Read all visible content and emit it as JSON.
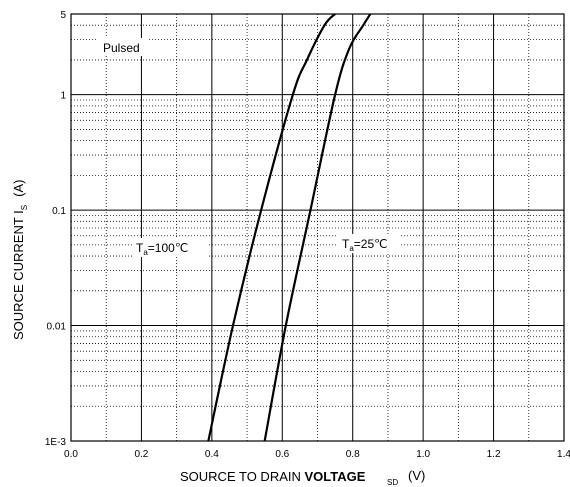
{
  "chart_data": {
    "type": "line",
    "x_axis": {
      "title_main": "SOURCE TO DRAIN ",
      "title_bold": "VOLTAGE",
      "title_sub": "SD",
      "title_unit": "(V)",
      "range": [
        0.0,
        1.4
      ],
      "ticks": [
        0.0,
        0.2,
        0.4,
        0.6,
        0.8,
        1.0,
        1.2,
        1.4
      ],
      "tick_labels": [
        "0.0",
        "0.2",
        "0.4",
        "0.6",
        "0.8",
        "1.0",
        "1.2",
        "1.4"
      ],
      "minor_step": 0.1
    },
    "y_axis": {
      "title_main": "SOURCE CURRENT  I",
      "title_sub": "S",
      "title_unit": "(A)",
      "scale": "log",
      "range": [
        0.001,
        5
      ],
      "ticks": [
        0.001,
        0.01,
        0.1,
        1,
        5
      ],
      "tick_labels": [
        "1E-3",
        "0.01",
        "0.1",
        "1",
        "5"
      ]
    },
    "grid": {
      "major_solid": true,
      "minor_dotted": true
    },
    "annotations": [
      {
        "id": "pulsed",
        "text": "Pulsed"
      },
      {
        "id": "t100",
        "prefix": "T",
        "sub": "a",
        "text": "=100℃"
      },
      {
        "id": "t25",
        "prefix": "T",
        "sub": "a",
        "text": "=25℃"
      }
    ],
    "series": [
      {
        "points": [
          [
            0.39,
            0.001
          ],
          [
            0.46,
            0.01
          ],
          [
            0.54,
            0.1
          ],
          [
            0.63,
            1.0
          ],
          [
            0.67,
            2.0
          ],
          [
            0.72,
            4.0
          ],
          [
            0.75,
            5.0
          ]
        ]
      },
      {
        "points": [
          [
            0.55,
            0.001
          ],
          [
            0.61,
            0.01
          ],
          [
            0.68,
            0.1
          ],
          [
            0.75,
            1.0
          ],
          [
            0.79,
            2.5
          ],
          [
            0.83,
            4.0
          ],
          [
            0.85,
            5.0
          ]
        ]
      }
    ]
  }
}
